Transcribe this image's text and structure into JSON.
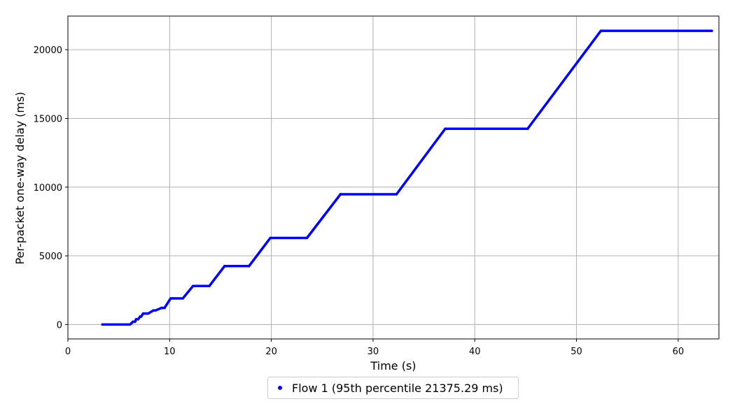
{
  "chart_data": {
    "type": "scatter",
    "title": "",
    "xlabel": "Time (s)",
    "ylabel": "Per-packet one-way delay (ms)",
    "xlim": [
      0,
      64
    ],
    "ylim": [
      -1050,
      22450
    ],
    "xticks": [
      0,
      10,
      20,
      30,
      40,
      50,
      60
    ],
    "yticks": [
      0,
      5000,
      10000,
      15000,
      20000
    ],
    "grid": true,
    "legend_position": "below",
    "series": [
      {
        "name": "Flow 1 (95th percentile 21375.29 ms)",
        "color": "#0000ff",
        "x": [
          3.4,
          6.1,
          6.4,
          6.6,
          6.7,
          6.9,
          7.1,
          7.2,
          7.4,
          7.7,
          7.9,
          8.4,
          8.6,
          9.2,
          9.5,
          10.1,
          10.3,
          11.3,
          12.3,
          13.9,
          15.4,
          17.8,
          19.9,
          23.5,
          26.8,
          32.3,
          37.1,
          45.2,
          52.4,
          63.3
        ],
        "y": [
          0,
          0,
          200,
          200,
          380,
          380,
          580,
          580,
          800,
          800,
          800,
          1020,
          1020,
          1210,
          1210,
          1900,
          1900,
          1900,
          2800,
          2800,
          4250,
          4250,
          6300,
          6300,
          9480,
          9480,
          14250,
          14250,
          21375,
          21375
        ]
      }
    ]
  },
  "legend": {
    "items": [
      {
        "label": "Flow 1 (95th percentile 21375.29 ms)",
        "color": "#0000ff"
      }
    ]
  }
}
